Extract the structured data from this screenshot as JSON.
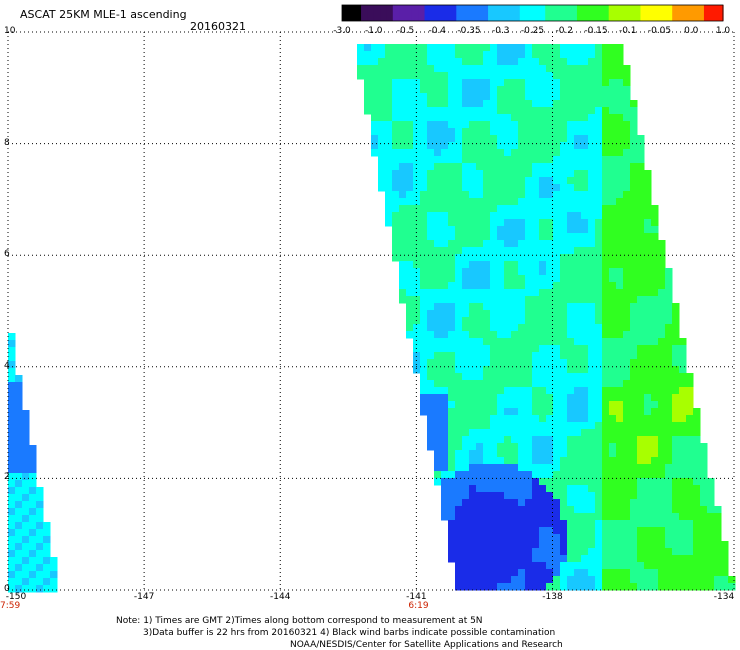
{
  "header": {
    "title": "ASCAT 25KM MLE-1 ascending",
    "date": "20160321"
  },
  "colorbar": {
    "labels": [
      "-3.0",
      "-1.0",
      "-0.5",
      "-0.4",
      "-0.35",
      "-0.3",
      "-0.25",
      "-0.2",
      "-0.15",
      "-0.1",
      "-0.05",
      "0.0",
      "1.0"
    ],
    "colors": [
      "#000000",
      "#3a0d5a",
      "#5a1fa8",
      "#1a2ce8",
      "#1a7aff",
      "#18c8ff",
      "#00ffff",
      "#20ff90",
      "#30ff20",
      "#a8ff00",
      "#ffff00",
      "#ff9a00",
      "#ff1a00"
    ]
  },
  "map": {
    "lon_range": [
      -150,
      -134
    ],
    "lat_range": [
      0,
      10
    ],
    "lon_ticks": [
      "-150",
      "-147",
      "-144",
      "-141",
      "-138",
      "-134"
    ],
    "lat_ticks": [
      "0",
      "2",
      "4",
      "6",
      "8",
      "10"
    ],
    "pass_times": [
      {
        "lon": -150,
        "text": "7:59"
      },
      {
        "lon": -141,
        "text": "6:19"
      }
    ]
  },
  "notes": {
    "line1": "Note: 1) Times are GMT 2)Times along bottom correspond to measurement at 5N",
    "line2": "3)Data buffer is 22 hrs from 20160321 4) Black wind barbs indicate possible contamination",
    "line3": "NOAA/NESDIS/Center for Satellite Applications and Research"
  }
}
